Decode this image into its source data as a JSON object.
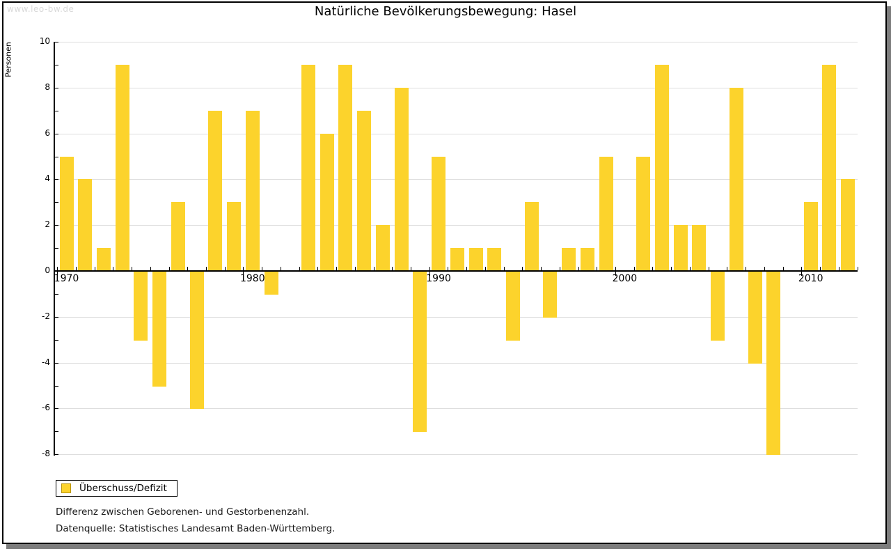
{
  "watermark": "www.leo-bw.de",
  "title": "Natürliche Bevölkerungsbewegung: Hasel",
  "chart_data": {
    "type": "bar",
    "title": "Natürliche Bevölkerungsbewegung: Hasel",
    "xlabel": "",
    "ylabel": "Personen",
    "series_name": "Überschuss/Defizit",
    "bar_color": "#fcd32c",
    "grid": true,
    "gridline_color": "#dedede",
    "ylim": [
      -8,
      10
    ],
    "y_major_step": 2,
    "x_decade_labels": [
      "1970",
      "1980",
      "1990",
      "2000",
      "2010"
    ],
    "years": [
      1970,
      1971,
      1972,
      1973,
      1974,
      1975,
      1976,
      1977,
      1978,
      1979,
      1980,
      1981,
      1982,
      1983,
      1984,
      1985,
      1986,
      1987,
      1988,
      1989,
      1990,
      1991,
      1992,
      1993,
      1994,
      1995,
      1996,
      1997,
      1998,
      1999,
      2000,
      2001,
      2002,
      2003,
      2004,
      2005,
      2006,
      2007,
      2008,
      2009,
      2010,
      2011,
      2012
    ],
    "values": [
      5,
      4,
      1,
      9,
      -3,
      -5,
      3,
      -6,
      7,
      3,
      7,
      -1,
      0,
      9,
      6,
      9,
      7,
      2,
      8,
      -7,
      5,
      1,
      1,
      1,
      -3,
      3,
      -2,
      1,
      1,
      5,
      0,
      5,
      9,
      2,
      2,
      -3,
      8,
      -4,
      -8,
      0,
      3,
      9,
      4
    ],
    "legend_position": "bottom-left"
  },
  "legend": {
    "label": "Überschuss/Defizit",
    "swatch_color": "#fcd32c"
  },
  "footer": {
    "line1": "Differenz zwischen Geborenen- und Gestorbenenzahl.",
    "line2": "Datenquelle: Statistisches Landesamt Baden-Württemberg."
  }
}
